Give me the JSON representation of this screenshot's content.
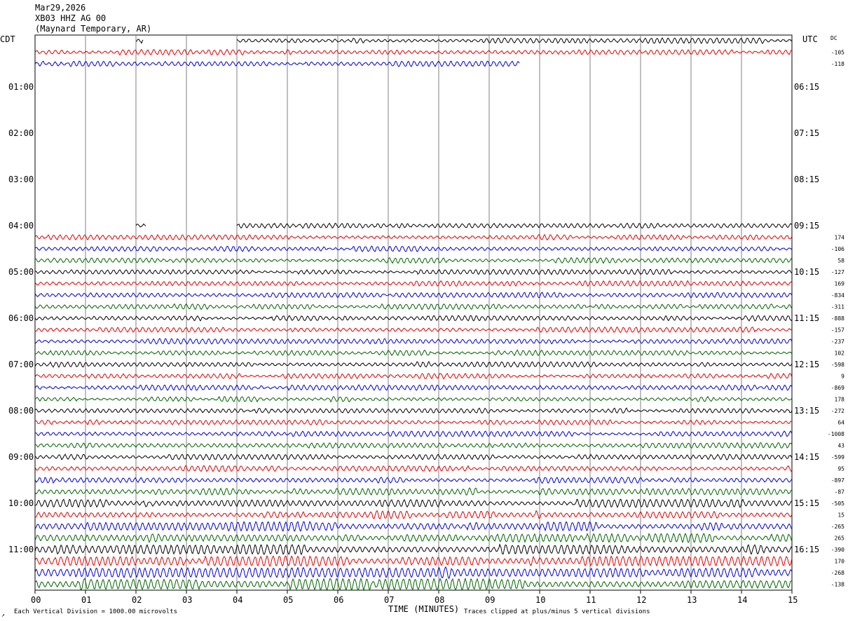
{
  "header": {
    "date": "Mar29,2026",
    "station": "XB03 HHZ AG 00",
    "location": "(Maynard Temporary, AR)"
  },
  "left_zone": "CDT",
  "right_zone": "UTC",
  "dc_label": "DC",
  "footer": {
    "scale_note": "Each Vertical Division = 1000.00 microvolts",
    "xaxis_title": "TIME (MINUTES)",
    "clip_note": "Traces clipped at plus/minus 5 vertical divisions",
    "corner_mark": "↗"
  },
  "colors": {
    "black": "#000000",
    "red": "#e00000",
    "blue": "#0000d0",
    "green": "#006400",
    "grid": "#808080"
  },
  "chart_data": {
    "type": "line",
    "title": "XB03 HHZ AG 00",
    "xlabel": "TIME (MINUTES)",
    "xlim": [
      0,
      15
    ],
    "x_ticks": [
      "00",
      "01",
      "02",
      "03",
      "04",
      "05",
      "06",
      "07",
      "08",
      "09",
      "10",
      "11",
      "12",
      "13",
      "14",
      "15"
    ],
    "left_hour_labels": [
      "01:00",
      "02:00",
      "03:00",
      "04:00",
      "05:00",
      "06:00",
      "07:00",
      "08:00",
      "09:00",
      "10:00",
      "11:00"
    ],
    "right_hour_labels": [
      "06:15",
      "07:15",
      "08:15",
      "09:15",
      "10:15",
      "11:15",
      "12:15",
      "13:15",
      "14:15",
      "15:15",
      "16:15"
    ],
    "row_interval_minutes": 15,
    "rows": [
      {
        "row": 0,
        "color": "black",
        "start": 2.0,
        "end": 15,
        "gap": [
          2.15,
          4.0
        ],
        "dc": ""
      },
      {
        "row": 1,
        "color": "red",
        "start": 0,
        "end": 15,
        "dc": "-105"
      },
      {
        "row": 2,
        "color": "blue",
        "start": 0,
        "end": 9.6,
        "dc": "-118"
      },
      {
        "row": 16,
        "color": "black",
        "start": 2.0,
        "end": 15,
        "gap": [
          2.2,
          4.0
        ],
        "dc": ""
      },
      {
        "row": 17,
        "color": "red",
        "start": 0,
        "end": 15,
        "dc": "174"
      },
      {
        "row": 18,
        "color": "blue",
        "start": 0,
        "end": 15,
        "dc": "-106"
      },
      {
        "row": 19,
        "color": "green",
        "start": 0,
        "end": 15,
        "dc": "58"
      },
      {
        "row": 20,
        "color": "black",
        "start": 0,
        "end": 15,
        "dc": "-127"
      },
      {
        "row": 21,
        "color": "red",
        "start": 0,
        "end": 15,
        "dc": "169"
      },
      {
        "row": 22,
        "color": "blue",
        "start": 0,
        "end": 15,
        "dc": "-834"
      },
      {
        "row": 23,
        "color": "green",
        "start": 0,
        "end": 15,
        "dc": "-311"
      },
      {
        "row": 24,
        "color": "black",
        "start": 0,
        "end": 15,
        "dc": "-888"
      },
      {
        "row": 25,
        "color": "red",
        "start": 0,
        "end": 15,
        "dc": "-157"
      },
      {
        "row": 26,
        "color": "blue",
        "start": 0,
        "end": 15,
        "dc": "-237"
      },
      {
        "row": 27,
        "color": "green",
        "start": 0,
        "end": 15,
        "dc": "102"
      },
      {
        "row": 28,
        "color": "black",
        "start": 0,
        "end": 15,
        "dc": "-598"
      },
      {
        "row": 29,
        "color": "red",
        "start": 0,
        "end": 15,
        "dc": "9"
      },
      {
        "row": 30,
        "color": "blue",
        "start": 0,
        "end": 15,
        "dc": "-869"
      },
      {
        "row": 31,
        "color": "green",
        "start": 0,
        "end": 15,
        "dc": "178"
      },
      {
        "row": 32,
        "color": "black",
        "start": 0,
        "end": 15,
        "dc": "-272"
      },
      {
        "row": 33,
        "color": "red",
        "start": 0,
        "end": 15,
        "dc": "64"
      },
      {
        "row": 34,
        "color": "blue",
        "start": 0,
        "end": 15,
        "dc": "-1008"
      },
      {
        "row": 35,
        "color": "green",
        "start": 0,
        "end": 15,
        "dc": "43"
      },
      {
        "row": 36,
        "color": "black",
        "start": 0,
        "end": 15,
        "dc": "-599"
      },
      {
        "row": 37,
        "color": "red",
        "start": 0,
        "end": 15,
        "dc": "95"
      },
      {
        "row": 38,
        "color": "blue",
        "start": 0,
        "end": 15,
        "dc": "-897"
      },
      {
        "row": 39,
        "color": "green",
        "start": 0,
        "end": 15,
        "dc": "-87"
      },
      {
        "row": 40,
        "color": "black",
        "start": 0,
        "end": 15,
        "dc": "-505"
      },
      {
        "row": 41,
        "color": "red",
        "start": 0,
        "end": 15,
        "dc": "15"
      },
      {
        "row": 42,
        "color": "blue",
        "start": 0,
        "end": 15,
        "dc": "-265"
      },
      {
        "row": 43,
        "color": "green",
        "start": 0,
        "end": 15,
        "dc": "265"
      },
      {
        "row": 44,
        "color": "black",
        "start": 0,
        "end": 15,
        "dc": "-390"
      },
      {
        "row": 45,
        "color": "red",
        "start": 0,
        "end": 15,
        "dc": "170"
      },
      {
        "row": 46,
        "color": "blue",
        "start": 0,
        "end": 15,
        "dc": "-268"
      },
      {
        "row": 47,
        "color": "green",
        "start": 0,
        "end": 15,
        "dc": "-138"
      }
    ]
  }
}
